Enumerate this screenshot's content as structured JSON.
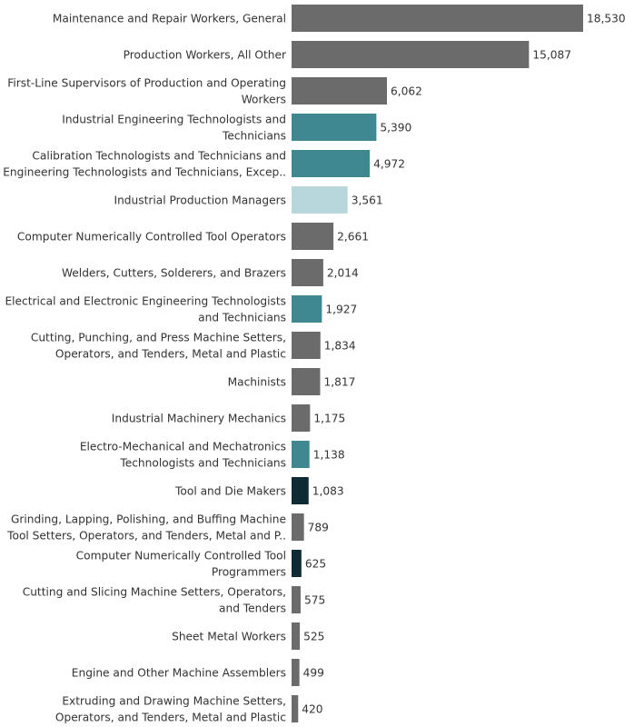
{
  "chart_data": {
    "type": "bar",
    "orientation": "horizontal",
    "title": "",
    "xlabel": "",
    "ylabel": "",
    "xlim": [
      0,
      18530
    ],
    "grid": false,
    "legend": "none",
    "colors": {
      "gray": "#6b6b6b",
      "teal": "#3f8791",
      "light_teal": "#b7d7dc",
      "dark_navy": "#0e2b35"
    },
    "categories": [
      [
        "Maintenance and Repair Workers, General"
      ],
      [
        "Production Workers, All Other"
      ],
      [
        "First-Line Supervisors of Production and Operating",
        "Workers"
      ],
      [
        "Industrial Engineering Technologists and",
        "Technicians"
      ],
      [
        "Calibration Technologists and Technicians and",
        "Engineering Technologists and Technicians, Excep.."
      ],
      [
        "Industrial Production Managers"
      ],
      [
        "Computer Numerically Controlled Tool Operators"
      ],
      [
        "Welders, Cutters, Solderers, and Brazers"
      ],
      [
        "Electrical and Electronic Engineering Technologists",
        "and Technicians"
      ],
      [
        "Cutting, Punching, and Press Machine Setters,",
        "Operators, and Tenders, Metal and Plastic"
      ],
      [
        "Machinists"
      ],
      [
        "Industrial Machinery Mechanics"
      ],
      [
        "Electro-Mechanical and Mechatronics",
        "Technologists and Technicians"
      ],
      [
        "Tool and Die Makers"
      ],
      [
        "Grinding, Lapping, Polishing, and Buffing Machine",
        "Tool Setters, Operators, and Tenders, Metal and P.."
      ],
      [
        "Computer Numerically Controlled Tool",
        "Programmers"
      ],
      [
        "Cutting and Slicing Machine Setters, Operators,",
        "and Tenders"
      ],
      [
        "Sheet Metal Workers"
      ],
      [
        "Engine and Other Machine Assemblers"
      ],
      [
        "Extruding and Drawing Machine Setters,",
        "Operators, and Tenders, Metal and Plastic"
      ]
    ],
    "values": [
      18530,
      15087,
      6062,
      5390,
      4972,
      3561,
      2661,
      2014,
      1927,
      1834,
      1817,
      1175,
      1138,
      1083,
      789,
      625,
      575,
      525,
      499,
      420
    ],
    "value_labels": [
      "18,530",
      "15,087",
      "6,062",
      "5,390",
      "4,972",
      "3,561",
      "2,661",
      "2,014",
      "1,927",
      "1,834",
      "1,817",
      "1,175",
      "1,138",
      "1,083",
      "789",
      "625",
      "575",
      "525",
      "499",
      "420"
    ],
    "bar_colors": [
      "gray",
      "gray",
      "gray",
      "teal",
      "teal",
      "light_teal",
      "gray",
      "gray",
      "teal",
      "gray",
      "gray",
      "gray",
      "teal",
      "dark_navy",
      "gray",
      "dark_navy",
      "gray",
      "gray",
      "gray",
      "gray"
    ]
  }
}
